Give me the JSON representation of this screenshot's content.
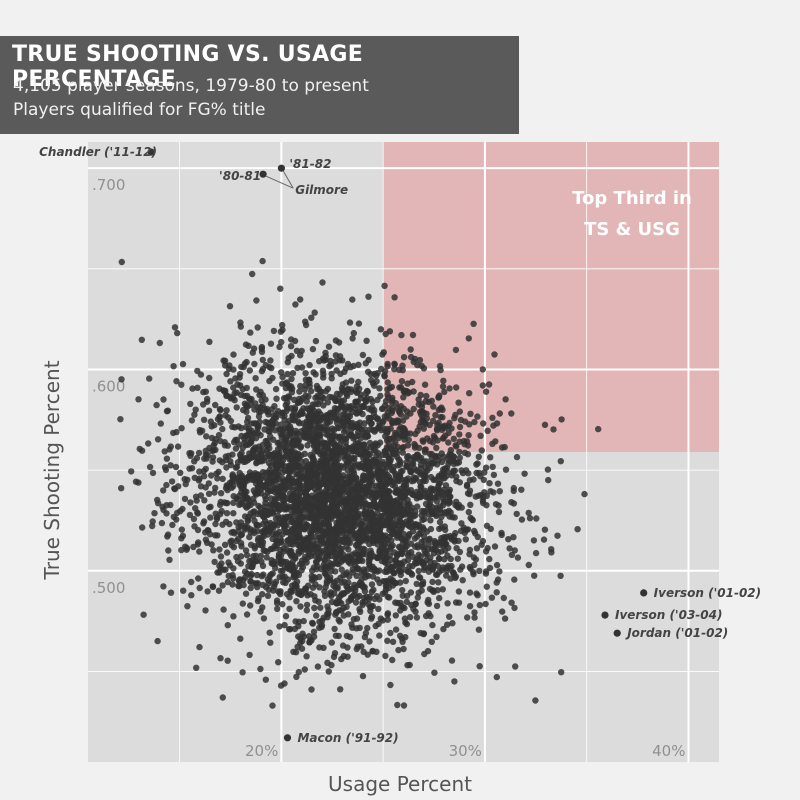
{
  "header": {
    "title": "TRUE SHOOTING VS. USAGE PERCENTAGE",
    "subtitle1": "4,105 player seasons, 1979-80 to present",
    "subtitle2": "Players qualified for FG% title"
  },
  "colors": {
    "plot_bg": "#dcdcdc",
    "page_bg": "#f1f1f1",
    "highlight": "#e2b6b6",
    "point": "#333333",
    "grid": "#ffffff",
    "title_bg": "#5a5a5a"
  },
  "chart_data": {
    "type": "scatter",
    "xlabel": "Usage Percent",
    "ylabel": "True Shooting Percent",
    "xlim": [
      10.5,
      41.5
    ],
    "ylim": [
      0.405,
      0.713
    ],
    "x_ticks": [
      {
        "value": 20,
        "label": "20%"
      },
      {
        "value": 30,
        "label": "30%"
      },
      {
        "value": 40,
        "label": "40%"
      }
    ],
    "y_ticks": [
      {
        "value": 0.5,
        "label": ".500"
      },
      {
        "value": 0.6,
        "label": ".600"
      },
      {
        "value": 0.7,
        "label": ".700"
      }
    ],
    "grid": true,
    "region": {
      "label_line1": "Top Third in",
      "label_line2": "TS & USG",
      "x_min": 25.0,
      "y_min": 0.559
    },
    "n_points": 4105,
    "cloud": {
      "center_x": 22.8,
      "center_y": 0.538,
      "sd_x": 3.6,
      "sd_y": 0.034,
      "correlation": -0.08
    },
    "labeled_points": [
      {
        "label": "Chandler ('11-12)",
        "x": 13.6,
        "y": 0.708
      },
      {
        "label": "'81-82",
        "x": 20.0,
        "y": 0.7
      },
      {
        "label": "'80-81",
        "x": 19.1,
        "y": 0.697
      },
      {
        "label": "Gilmore",
        "x": 19.6,
        "y": 0.698
      },
      {
        "label": "Iverson ('01-02)",
        "x": 37.8,
        "y": 0.489
      },
      {
        "label": "Iverson ('03-04)",
        "x": 35.9,
        "y": 0.478
      },
      {
        "label": "Jordan ('01-02)",
        "x": 36.5,
        "y": 0.469
      },
      {
        "label": "Macon ('91-92)",
        "x": 20.3,
        "y": 0.417
      }
    ]
  }
}
